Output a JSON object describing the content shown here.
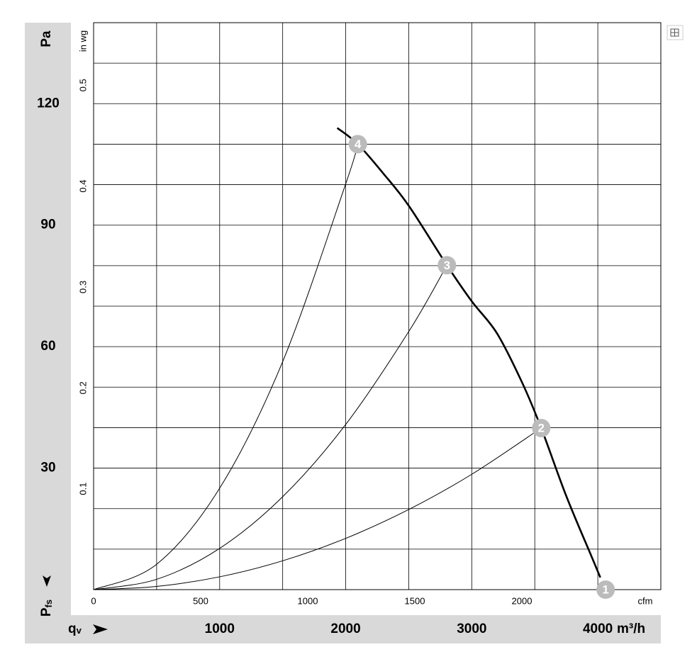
{
  "chart_data": {
    "type": "line",
    "x_symbol": "q",
    "x_subscript": "v",
    "x_unit": "m³/h",
    "y_symbol": "P",
    "y_subscript": "fs",
    "y_unit": "Pa",
    "x2_unit": "cfm",
    "y2_unit": "in wg",
    "xlim": [
      0,
      4500
    ],
    "xticks": [
      1000,
      2000,
      3000,
      4000
    ],
    "xgrid": [
      0,
      500,
      1000,
      1500,
      2000,
      2500,
      3000,
      3500,
      4000,
      4500
    ],
    "ylim": [
      0,
      140
    ],
    "yticks": [
      30,
      60,
      90,
      120
    ],
    "ygrid": [
      0,
      10,
      20,
      30,
      40,
      50,
      60,
      70,
      80,
      90,
      100,
      110,
      120,
      130,
      140
    ],
    "x2lim": [
      0,
      2649
    ],
    "x2ticks": [
      0,
      500,
      1000,
      1500,
      2000
    ],
    "y2lim": [
      0,
      0.562
    ],
    "y2ticks": [
      0.1,
      0.2,
      0.3,
      0.4,
      0.5
    ],
    "color": "#000000",
    "point_color": "#bbbbbb",
    "fan_curve": {
      "x": [
        1933,
        2096,
        2300,
        2500,
        2803,
        3000,
        3200,
        3400,
        3551,
        3750,
        3950,
        4020
      ],
      "values": [
        114,
        110,
        102.7,
        94.8,
        80.1,
        71.2,
        63.3,
        51.1,
        39.9,
        23.1,
        8.2,
        3.0
      ]
    },
    "system_curves": [
      {
        "x": [
          0,
          500,
          1000,
          1500,
          2000,
          2500,
          3000,
          3551
        ],
        "values": [
          0,
          0.79,
          3.16,
          7.12,
          12.66,
          19.78,
          28.48,
          39.9
        ]
      },
      {
        "x": [
          0,
          500,
          1000,
          1500,
          2000,
          2500,
          2803
        ],
        "values": [
          0,
          2.55,
          10.19,
          22.94,
          40.78,
          63.72,
          80.1
        ]
      },
      {
        "x": [
          0,
          500,
          1000,
          1500,
          2000,
          2096
        ],
        "values": [
          0,
          6.26,
          25.04,
          56.3,
          100.2,
          110
        ]
      }
    ],
    "points": [
      {
        "label": "1",
        "x": 4062,
        "y": 0
      },
      {
        "label": "2",
        "x": 3551,
        "y": 39.9
      },
      {
        "label": "3",
        "x": 2803,
        "y": 80.1
      },
      {
        "label": "4",
        "x": 2096,
        "y": 110
      }
    ]
  }
}
